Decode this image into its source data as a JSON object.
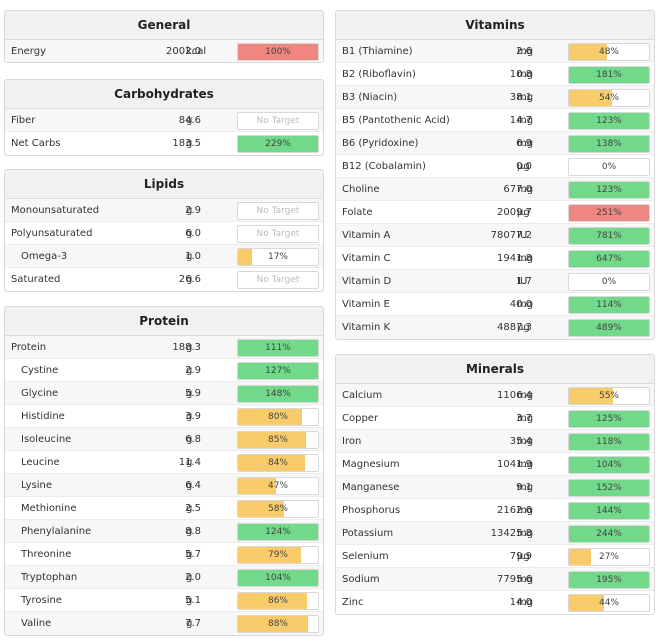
{
  "colors": {
    "over": "#f08680",
    "full": "#72d98a",
    "partial": "#f8cc6a"
  },
  "general": {
    "title": "General",
    "rows": [
      {
        "name": "Energy",
        "amount": "2002.0",
        "unit": "kcal",
        "pct": "100%",
        "status": "over",
        "fill": 100
      }
    ]
  },
  "carbohydrates": {
    "title": "Carbohydrates",
    "rows": [
      {
        "name": "Fiber",
        "amount": "84.6",
        "unit": "g",
        "pct": "No Target",
        "status": "none",
        "fill": 0
      },
      {
        "name": "Net Carbs",
        "amount": "183.5",
        "unit": "g",
        "pct": "229%",
        "status": "full",
        "fill": 100
      }
    ]
  },
  "lipids": {
    "title": "Lipids",
    "rows": [
      {
        "name": "Monounsaturated",
        "amount": "2.9",
        "unit": "g",
        "pct": "No Target",
        "status": "none",
        "fill": 0
      },
      {
        "name": "Polyunsaturated",
        "amount": "6.0",
        "unit": "g",
        "pct": "No Target",
        "status": "none",
        "fill": 0
      },
      {
        "name": "Omega-3",
        "amount": "1.0",
        "unit": "g",
        "pct": "17%",
        "status": "partial",
        "fill": 17,
        "indent": true
      },
      {
        "name": "Saturated",
        "amount": "26.6",
        "unit": "g",
        "pct": "No Target",
        "status": "none",
        "fill": 0
      }
    ]
  },
  "protein": {
    "title": "Protein",
    "rows": [
      {
        "name": "Protein",
        "amount": "188.3",
        "unit": "g",
        "pct": "111%",
        "status": "full",
        "fill": 100
      },
      {
        "name": "Cystine",
        "amount": "2.9",
        "unit": "g",
        "pct": "127%",
        "status": "full",
        "fill": 100,
        "indent": true
      },
      {
        "name": "Glycine",
        "amount": "5.9",
        "unit": "g",
        "pct": "148%",
        "status": "full",
        "fill": 100,
        "indent": true
      },
      {
        "name": "Histidine",
        "amount": "3.9",
        "unit": "g",
        "pct": "80%",
        "status": "partial",
        "fill": 80,
        "indent": true
      },
      {
        "name": "Isoleucine",
        "amount": "6.8",
        "unit": "g",
        "pct": "85%",
        "status": "partial",
        "fill": 85,
        "indent": true
      },
      {
        "name": "Leucine",
        "amount": "11.4",
        "unit": "g",
        "pct": "84%",
        "status": "partial",
        "fill": 84,
        "indent": true
      },
      {
        "name": "Lysine",
        "amount": "6.4",
        "unit": "g",
        "pct": "47%",
        "status": "partial",
        "fill": 47,
        "indent": true
      },
      {
        "name": "Methionine",
        "amount": "2.5",
        "unit": "g",
        "pct": "58%",
        "status": "partial",
        "fill": 58,
        "indent": true
      },
      {
        "name": "Phenylalanine",
        "amount": "8.8",
        "unit": "g",
        "pct": "124%",
        "status": "full",
        "fill": 100,
        "indent": true
      },
      {
        "name": "Threonine",
        "amount": "5.7",
        "unit": "g",
        "pct": "79%",
        "status": "partial",
        "fill": 79,
        "indent": true
      },
      {
        "name": "Tryptophan",
        "amount": "2.0",
        "unit": "g",
        "pct": "104%",
        "status": "full",
        "fill": 100,
        "indent": true
      },
      {
        "name": "Tyrosine",
        "amount": "5.1",
        "unit": "g",
        "pct": "86%",
        "status": "partial",
        "fill": 86,
        "indent": true
      },
      {
        "name": "Valine",
        "amount": "7.7",
        "unit": "g",
        "pct": "88%",
        "status": "partial",
        "fill": 88,
        "indent": true
      }
    ]
  },
  "vitamins": {
    "title": "Vitamins",
    "rows": [
      {
        "name": "B1 (Thiamine)",
        "amount": "2.6",
        "unit": "mg",
        "pct": "48%",
        "status": "partial",
        "fill": 48
      },
      {
        "name": "B2 (Riboflavin)",
        "amount": "10.8",
        "unit": "mg",
        "pct": "181%",
        "status": "full",
        "fill": 100
      },
      {
        "name": "B3 (Niacin)",
        "amount": "38.1",
        "unit": "mg",
        "pct": "54%",
        "status": "partial",
        "fill": 54
      },
      {
        "name": "B5 (Pantothenic Acid)",
        "amount": "14.7",
        "unit": "mg",
        "pct": "123%",
        "status": "full",
        "fill": 100
      },
      {
        "name": "B6 (Pyridoxine)",
        "amount": "6.9",
        "unit": "mg",
        "pct": "138%",
        "status": "full",
        "fill": 100
      },
      {
        "name": "B12 (Cobalamin)",
        "amount": "0.0",
        "unit": "µg",
        "pct": "0%",
        "status": "partial",
        "fill": 0
      },
      {
        "name": "Choline",
        "amount": "677.0",
        "unit": "mg",
        "pct": "123%",
        "status": "full",
        "fill": 100
      },
      {
        "name": "Folate",
        "amount": "2009.7",
        "unit": "µg",
        "pct": "251%",
        "status": "over",
        "fill": 100
      },
      {
        "name": "Vitamin A",
        "amount": "78077.2",
        "unit": "IU",
        "pct": "781%",
        "status": "full",
        "fill": 100
      },
      {
        "name": "Vitamin C",
        "amount": "1941.8",
        "unit": "mg",
        "pct": "647%",
        "status": "full",
        "fill": 100
      },
      {
        "name": "Vitamin D",
        "amount": "1.7",
        "unit": "IU",
        "pct": "0%",
        "status": "partial",
        "fill": 0
      },
      {
        "name": "Vitamin E",
        "amount": "40.0",
        "unit": "mg",
        "pct": "114%",
        "status": "full",
        "fill": 100
      },
      {
        "name": "Vitamin K",
        "amount": "4887.3",
        "unit": "µg",
        "pct": "489%",
        "status": "full",
        "fill": 100
      }
    ]
  },
  "minerals": {
    "title": "Minerals",
    "rows": [
      {
        "name": "Calcium",
        "amount": "1106.4",
        "unit": "mg",
        "pct": "55%",
        "status": "partial",
        "fill": 55
      },
      {
        "name": "Copper",
        "amount": "3.7",
        "unit": "mg",
        "pct": "125%",
        "status": "full",
        "fill": 100
      },
      {
        "name": "Iron",
        "amount": "35.4",
        "unit": "mg",
        "pct": "118%",
        "status": "full",
        "fill": 100
      },
      {
        "name": "Magnesium",
        "amount": "1041.9",
        "unit": "mg",
        "pct": "104%",
        "status": "full",
        "fill": 100
      },
      {
        "name": "Manganese",
        "amount": "9.1",
        "unit": "mg",
        "pct": "152%",
        "status": "full",
        "fill": 100
      },
      {
        "name": "Phosphorus",
        "amount": "2162.6",
        "unit": "mg",
        "pct": "144%",
        "status": "full",
        "fill": 100
      },
      {
        "name": "Potassium",
        "amount": "13425.8",
        "unit": "mg",
        "pct": "244%",
        "status": "full",
        "fill": 100
      },
      {
        "name": "Selenium",
        "amount": "79.9",
        "unit": "µg",
        "pct": "27%",
        "status": "partial",
        "fill": 27
      },
      {
        "name": "Sodium",
        "amount": "7795.6",
        "unit": "mg",
        "pct": "195%",
        "status": "full",
        "fill": 100
      },
      {
        "name": "Zinc",
        "amount": "14.0",
        "unit": "mg",
        "pct": "44%",
        "status": "partial",
        "fill": 44
      }
    ]
  }
}
